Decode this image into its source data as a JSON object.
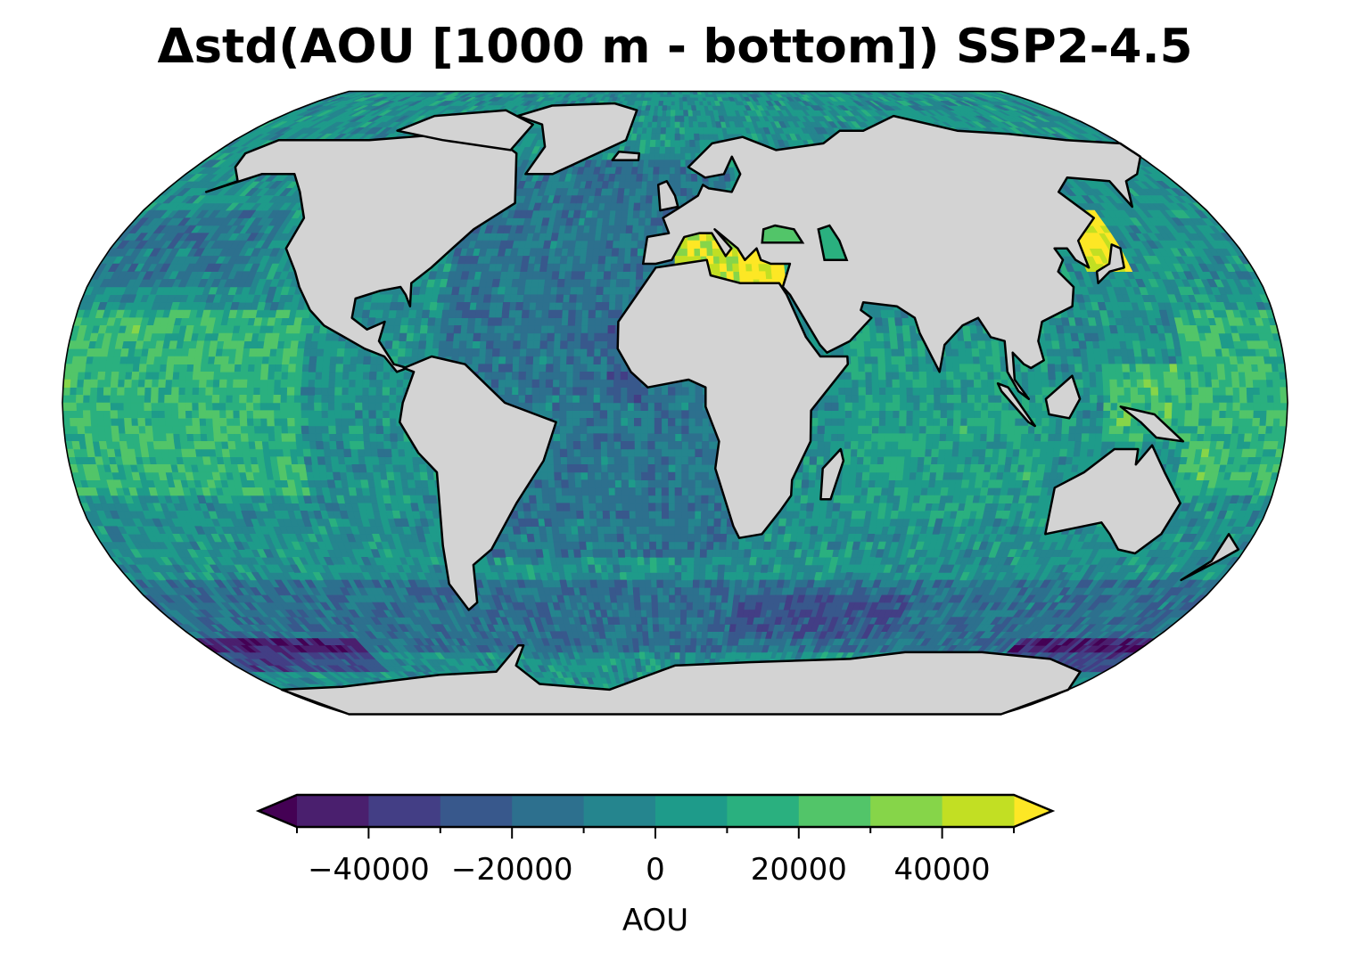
{
  "title": "Δstd(AOU [1000 m - bottom]) SSP2-4.5",
  "map": {
    "projection": "Robinson",
    "land_color": "#d3d3d3",
    "coast_color": "#000000",
    "field": "Change in standard deviation of AOU, 1000 m to bottom"
  },
  "colorbar": {
    "label": "AOU",
    "levels": [
      -50000,
      -40000,
      -30000,
      -20000,
      -10000,
      0,
      10000,
      20000,
      30000,
      40000,
      50000
    ],
    "tick_labels": [
      {
        "value": -40000,
        "text": "−40000"
      },
      {
        "value": -20000,
        "text": "−20000"
      },
      {
        "value": 0,
        "text": "0"
      },
      {
        "value": 20000,
        "text": "20000"
      },
      {
        "value": 40000,
        "text": "40000"
      }
    ],
    "colors": [
      "#4a1f6e",
      "#433e85",
      "#38588c",
      "#2d708e",
      "#25858e",
      "#1e9b8a",
      "#2ab07f",
      "#52c569",
      "#86d549",
      "#c2df23"
    ],
    "under_color": "#440154",
    "over_color": "#fde725",
    "extend": "both"
  }
}
